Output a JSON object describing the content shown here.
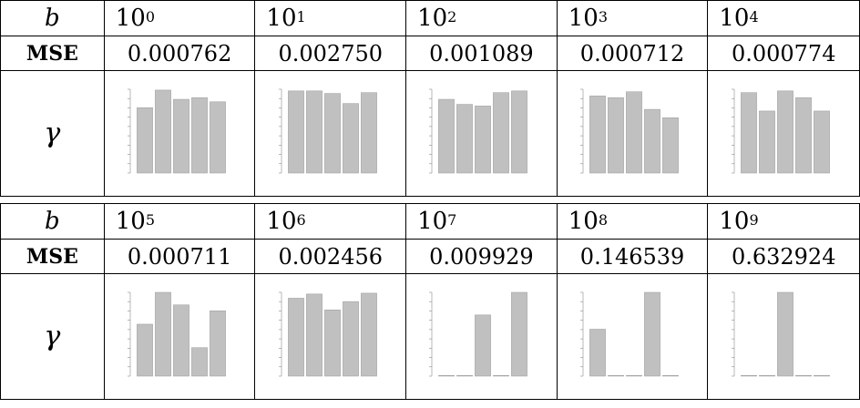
{
  "labels": {
    "b": "b",
    "mse": "MSE",
    "gamma": "γ"
  },
  "rows": [
    {
      "cols": [
        {
          "base": "10",
          "exp": "0",
          "mse": "0.000762",
          "bars": [
            0.78,
            0.99,
            0.88,
            0.9,
            0.85
          ]
        },
        {
          "base": "10",
          "exp": "1",
          "mse": "0.002750",
          "bars": [
            0.98,
            0.98,
            0.95,
            0.83,
            0.96
          ]
        },
        {
          "base": "10",
          "exp": "2",
          "mse": "0.001089",
          "bars": [
            0.88,
            0.82,
            0.8,
            0.96,
            0.98
          ]
        },
        {
          "base": "10",
          "exp": "3",
          "mse": "0.000712",
          "bars": [
            0.92,
            0.9,
            0.97,
            0.76,
            0.66
          ]
        },
        {
          "base": "10",
          "exp": "4",
          "mse": "0.000774",
          "bars": [
            0.96,
            0.74,
            0.98,
            0.9,
            0.74
          ]
        }
      ]
    },
    {
      "cols": [
        {
          "base": "10",
          "exp": "5",
          "mse": "0.000711",
          "bars": [
            0.62,
            1.0,
            0.85,
            0.34,
            0.78
          ]
        },
        {
          "base": "10",
          "exp": "6",
          "mse": "0.002456",
          "bars": [
            0.93,
            0.98,
            0.79,
            0.89,
            0.99
          ]
        },
        {
          "base": "10",
          "exp": "7",
          "mse": "0.009929",
          "bars": [
            0.0,
            0.0,
            0.73,
            0.0,
            1.0
          ]
        },
        {
          "base": "10",
          "exp": "8",
          "mse": "0.146539",
          "bars": [
            0.56,
            0.0,
            0.0,
            1.0,
            0.0
          ]
        },
        {
          "base": "10",
          "exp": "9",
          "mse": "0.632924",
          "bars": [
            0.0,
            0.0,
            1.0,
            0.0,
            0.0
          ]
        }
      ]
    }
  ],
  "colors": {
    "bar": "#c0c0c0",
    "barStroke": "#9a9a9a",
    "axis": "#8a8a8a"
  }
}
